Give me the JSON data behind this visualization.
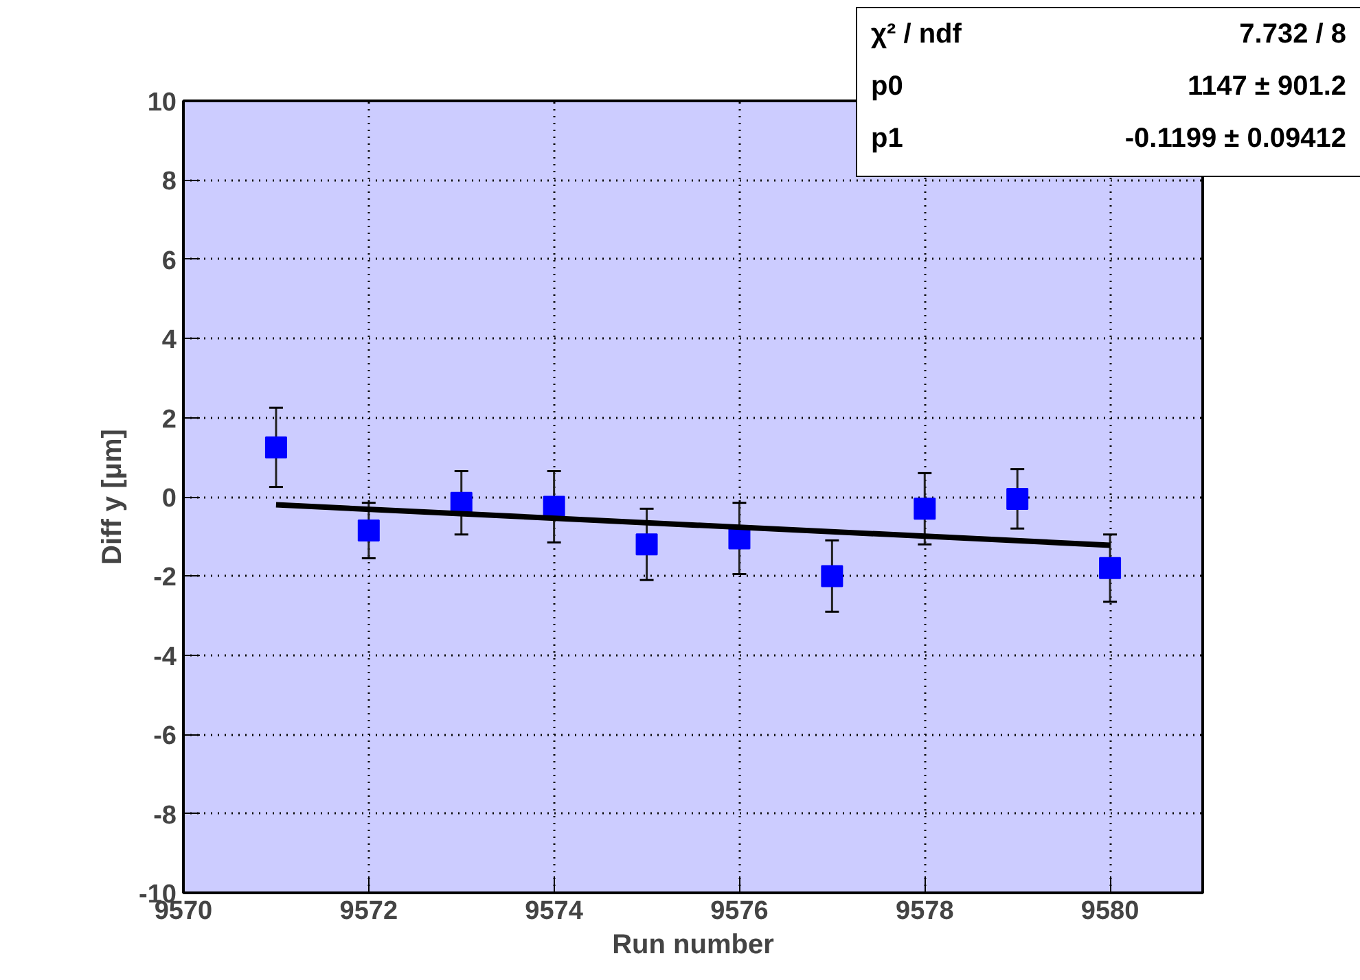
{
  "chart_data": {
    "type": "scatter",
    "xlabel": "Run number",
    "ylabel": "Diff y [μm]",
    "xlim": [
      9570,
      9581
    ],
    "xticks": [
      9570,
      9572,
      9574,
      9576,
      9578,
      9580
    ],
    "ylim": [
      -10,
      10
    ],
    "yticks": [
      -10,
      -8,
      -6,
      -4,
      -2,
      0,
      2,
      4,
      6,
      8,
      10
    ],
    "grid": true,
    "series": [
      {
        "color": "#0000ff",
        "marker": "square",
        "x": [
          9571,
          9572,
          9573,
          9574,
          9575,
          9576,
          9577,
          9578,
          9579,
          9580
        ],
        "values": [
          1.25,
          -0.85,
          -0.15,
          -0.25,
          -1.2,
          -1.05,
          -2.0,
          -0.3,
          -0.05,
          -1.8
        ],
        "errors": [
          1.0,
          0.7,
          0.8,
          0.9,
          0.9,
          0.9,
          0.9,
          0.9,
          0.75,
          0.85
        ]
      },
      {
        "type": "line",
        "color": "#000000",
        "x": [
          9571,
          9580
        ],
        "values": [
          -0.2,
          -1.22
        ]
      }
    ],
    "annotations": [
      "χ² / ndf",
      "7.732 / 8",
      "p0",
      "1147 ± 901.2",
      "p1",
      "-0.1199 ± 0.09412"
    ]
  }
}
